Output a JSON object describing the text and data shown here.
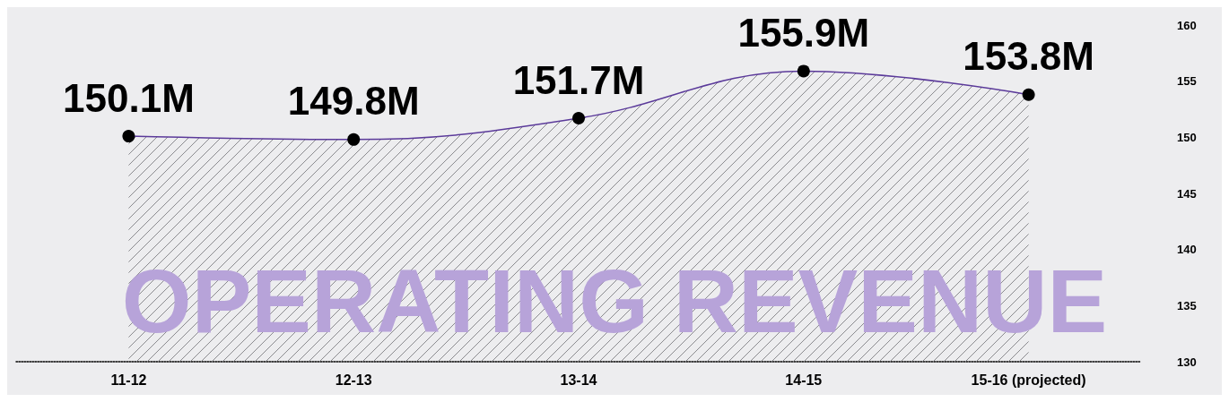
{
  "chart_data": {
    "type": "area",
    "title": "OPERATING REVENUE",
    "categories": [
      "11-12",
      "12-13",
      "13-14",
      "14-15",
      "15-16 (projected)"
    ],
    "series": [
      {
        "color": "#5b3a9a",
        "values": [
          150.1,
          149.8,
          151.7,
          155.9,
          153.8
        ],
        "value_labels": [
          "150.1M",
          "149.8M",
          "151.7M",
          "155.9M",
          "153.8M"
        ]
      }
    ],
    "ylim": [
      130,
      160
    ],
    "yticks": [
      130,
      135,
      140,
      145,
      150,
      155,
      160
    ],
    "marker": "circle",
    "grid": false
  }
}
